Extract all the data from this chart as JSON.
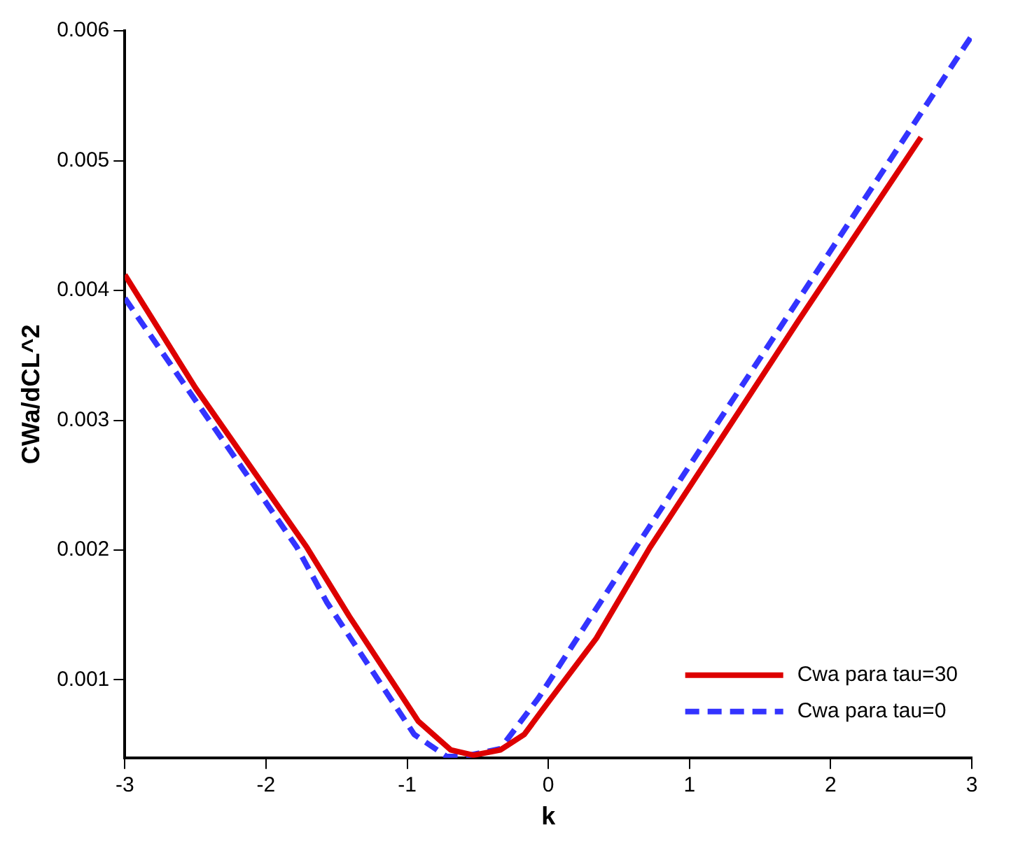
{
  "chart_data": {
    "type": "line",
    "xlabel": "k",
    "ylabel": "CWa/dCL^2",
    "xlim": [
      -3,
      3
    ],
    "ylim": [
      0.0004,
      0.006
    ],
    "xticks": [
      -3,
      -2,
      -1,
      0,
      1,
      2,
      3
    ],
    "yticks": [
      0.001,
      0.002,
      0.003,
      0.004,
      0.005,
      0.006
    ],
    "grid": false,
    "legend": "bottom right",
    "marker": "none",
    "series": [
      {
        "name": "Cwa para tau=30",
        "color": "#dd0000",
        "line_style": "solid",
        "x": [
          -3,
          -2.5,
          -1.71,
          -1.41,
          -0.92,
          -0.69,
          -0.53,
          -0.34,
          -0.17,
          0,
          0.34,
          0.72,
          1.78,
          2.64
        ],
        "values": [
          0.00412,
          0.00325,
          0.00202,
          0.00149,
          0.00068,
          0.00046,
          0.00042,
          0.00046,
          0.00058,
          0.00083,
          0.00132,
          0.00202,
          0.00378,
          0.00518
        ]
      },
      {
        "name": "Cwa para tau=0",
        "color": "#3333ff",
        "line_style": "dashed",
        "x": [
          -3,
          -1.78,
          -1.57,
          -0.95,
          -0.72,
          -0.6,
          -0.34,
          -0.07,
          0.62,
          2.95,
          3
        ],
        "values": [
          0.00394,
          0.00202,
          0.0016,
          0.00058,
          0.00041,
          0.00041,
          0.00047,
          0.00086,
          0.00202,
          0.00588,
          0.00596
        ]
      }
    ]
  }
}
